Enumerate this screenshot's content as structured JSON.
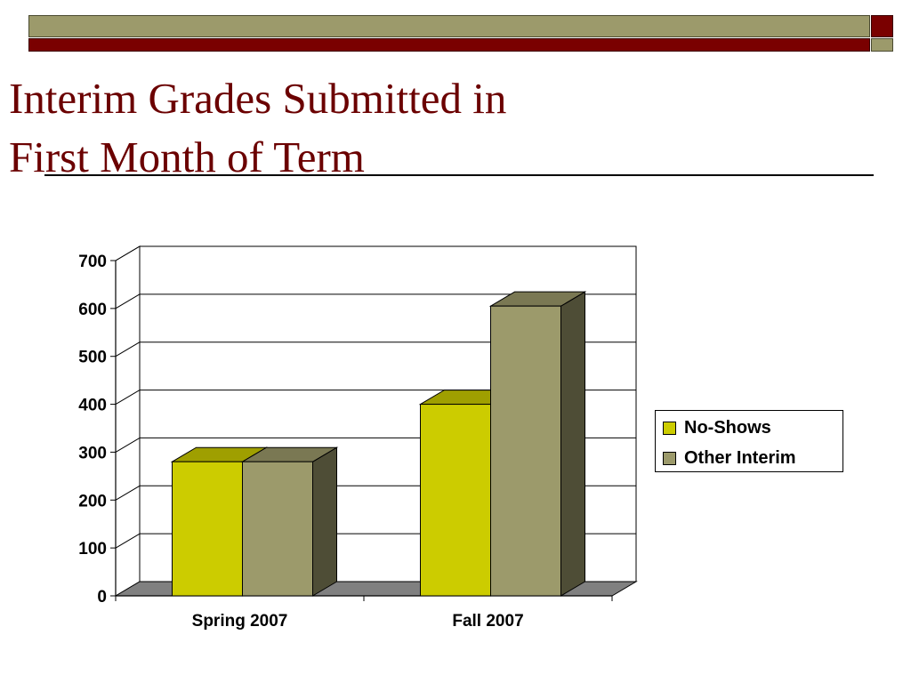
{
  "slide": {
    "title_line1": "Interim Grades Submitted in",
    "title_line2": "First Month of Term"
  },
  "colors": {
    "title": "#6B0000",
    "band_olive": "#9C9A6B",
    "band_red": "#7A0000"
  },
  "chart_data": {
    "type": "bar",
    "style": "3d-clustered",
    "categories": [
      "Spring 2007",
      "Fall 2007"
    ],
    "series": [
      {
        "name": "No-Shows",
        "values": [
          280,
          400
        ],
        "color": "#CCCC00"
      },
      {
        "name": "Other Interim",
        "values": [
          280,
          605
        ],
        "color": "#9C9A6B"
      }
    ],
    "ylim": [
      0,
      700
    ],
    "yticks": [
      0,
      100,
      200,
      300,
      400,
      500,
      600,
      700
    ],
    "grid": true,
    "legend_position": "right"
  }
}
